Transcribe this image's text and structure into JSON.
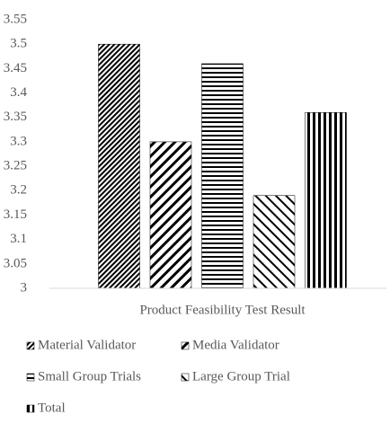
{
  "chart_data": {
    "type": "bar",
    "categories": [
      "Product Feasibility Test Result"
    ],
    "series": [
      {
        "name": "Material Validator",
        "color": "#000000",
        "pattern": "dense-backslash",
        "values": [
          3.5
        ]
      },
      {
        "name": "Media Validator",
        "color": "#000000",
        "pattern": "wide-backslash",
        "values": [
          3.3
        ]
      },
      {
        "name": "Small Group Trials",
        "color": "#000000",
        "pattern": "horizontal",
        "values": [
          3.46
        ]
      },
      {
        "name": "Large Group Trial",
        "color": "#000000",
        "pattern": "wide-slash",
        "values": [
          3.19
        ]
      },
      {
        "name": "Total",
        "color": "#000000",
        "pattern": "vertical",
        "values": [
          3.36
        ]
      }
    ],
    "ylim": [
      3,
      3.55
    ],
    "yticks": [
      3,
      3.05,
      3.1,
      3.15,
      3.2,
      3.25,
      3.3,
      3.35,
      3.4,
      3.45,
      3.5,
      3.55
    ],
    "grid": false,
    "legend": "bottom"
  }
}
